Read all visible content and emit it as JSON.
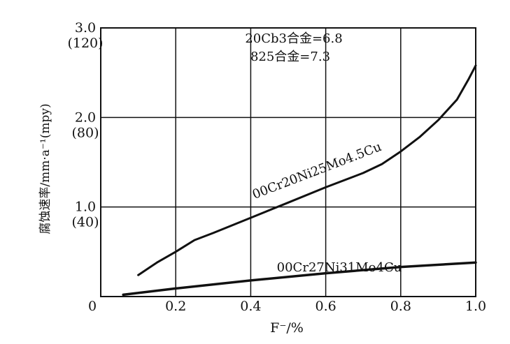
{
  "chart_data": {
    "type": "line",
    "xlabel": "F⁻/%",
    "ylabel": "腐蚀速率/mm·a⁻¹(mpy)",
    "xlim": [
      0,
      1.0
    ],
    "ylim": [
      0,
      3.0
    ],
    "grid": true,
    "origin_label": "0",
    "x_ticks": [
      {
        "value": 0.2,
        "label": "0.2"
      },
      {
        "value": 0.4,
        "label": "0.4"
      },
      {
        "value": 0.6,
        "label": "0.6"
      },
      {
        "value": 0.8,
        "label": "0.8"
      },
      {
        "value": 1.0,
        "label": "1.0"
      }
    ],
    "y_ticks": [
      {
        "value": 1.0,
        "label": "1.0",
        "sub": "(40)"
      },
      {
        "value": 2.0,
        "label": "2.0",
        "sub": "(80)"
      },
      {
        "value": 3.0,
        "label": "3.0",
        "sub": "(120)"
      }
    ],
    "annotations": [
      "20Cb3合金=6.8",
      "825合金=7.3"
    ],
    "series": [
      {
        "name": "00Cr20Ni25Mo4.5Cu",
        "x": [
          0.1,
          0.15,
          0.2,
          0.25,
          0.3,
          0.4,
          0.5,
          0.6,
          0.7,
          0.75,
          0.8,
          0.85,
          0.9,
          0.95,
          0.98,
          1.0
        ],
        "values": [
          0.24,
          0.38,
          0.5,
          0.63,
          0.71,
          0.88,
          1.05,
          1.22,
          1.38,
          1.48,
          1.62,
          1.78,
          1.97,
          2.2,
          2.42,
          2.58
        ]
      },
      {
        "name": "00Cr27Ni31Mo4Cu",
        "x": [
          0.06,
          0.2,
          0.4,
          0.6,
          0.8,
          1.0
        ],
        "values": [
          0.02,
          0.09,
          0.18,
          0.26,
          0.33,
          0.38
        ]
      }
    ]
  }
}
